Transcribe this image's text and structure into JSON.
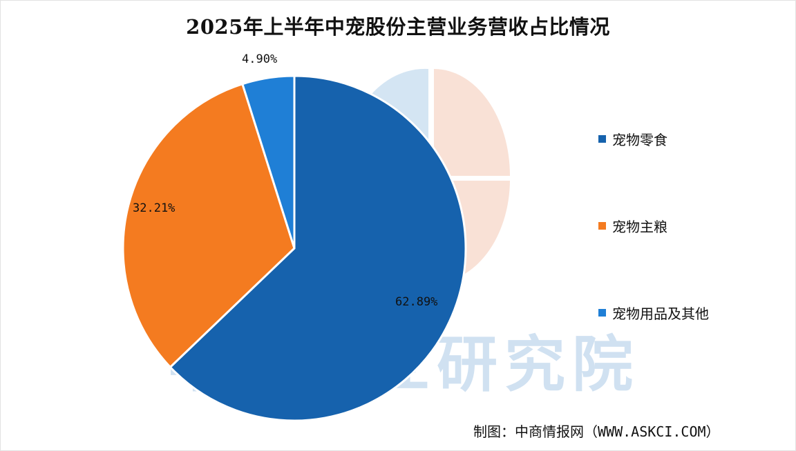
{
  "chart_data": {
    "type": "pie",
    "title": "2025年上半年中宠股份主营业务营收占比情况",
    "slices": [
      {
        "label": "宠物零食",
        "value": 62.89,
        "display": "62.89%",
        "color": "#1662ad"
      },
      {
        "label": "宠物主粮",
        "value": 32.21,
        "display": "32.21%",
        "color": "#f47b20"
      },
      {
        "label": "宠物用品及其他",
        "value": 4.9,
        "display": "4.90%",
        "color": "#1f7fd6"
      }
    ],
    "legend_position": "right",
    "start_angle": "12 o'clock",
    "direction": "clockwise"
  },
  "source": "制图：中商情报网（WWW.ASKCI.COM）",
  "watermark": {
    "text": "中商产业研究院",
    "colors": {
      "blue": "#c9dff0",
      "orange": "#f8d9cc"
    }
  }
}
